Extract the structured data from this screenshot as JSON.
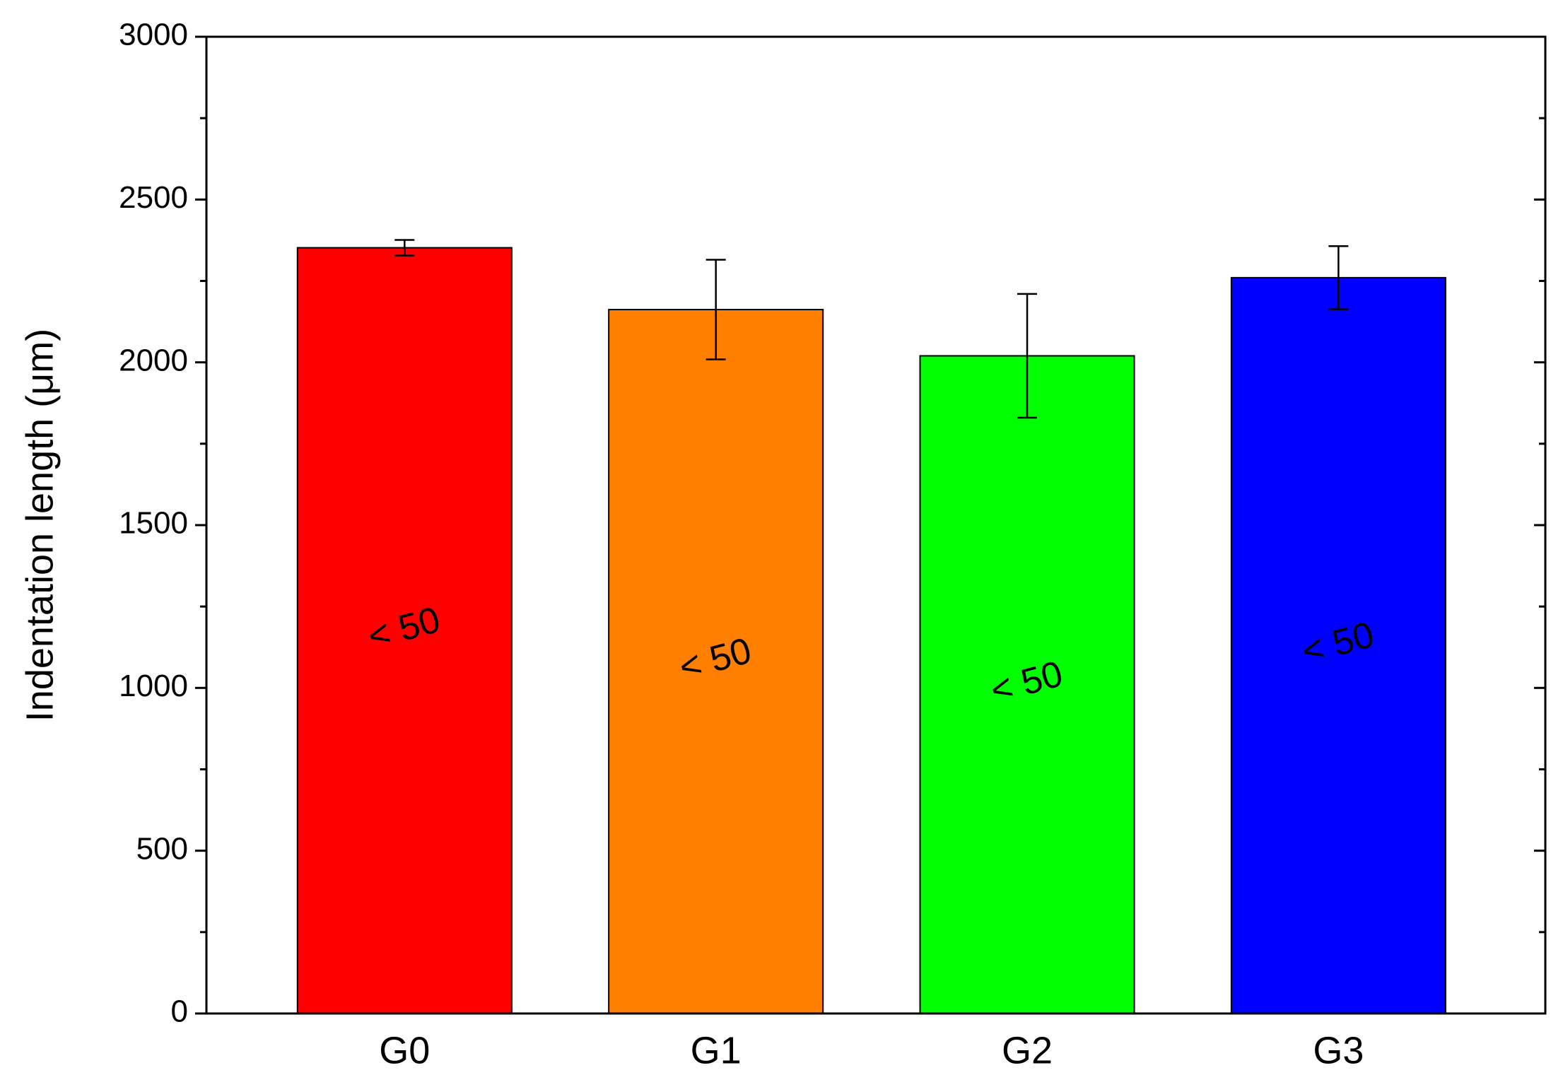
{
  "chart_data": {
    "type": "bar",
    "y_label": "Indentation length (μm)",
    "categories": [
      "G0",
      "G1",
      "G2",
      "G3"
    ],
    "values": [
      2352,
      2162,
      2020,
      2260
    ],
    "errors": [
      24,
      153,
      190,
      97
    ],
    "colors": [
      "#ff0000",
      "#ff8000",
      "#00ff00",
      "#0000ff"
    ],
    "annotations": [
      "< 50",
      "< 50",
      "< 50",
      "< 50"
    ],
    "ylim": [
      0,
      3000
    ],
    "yticks": [
      0,
      500,
      1000,
      1500,
      2000,
      2500,
      3000
    ],
    "yminorticks": [
      250,
      750,
      1250,
      1750,
      2250,
      2750
    ],
    "grid": false
  }
}
